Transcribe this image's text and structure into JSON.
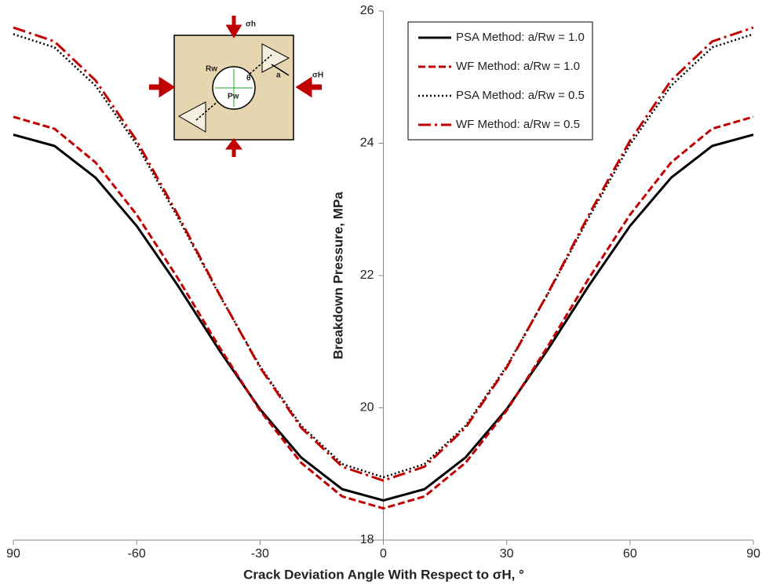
{
  "chart_data": {
    "type": "line",
    "x_label": "Crack Deviation Angle With Respect to σH, °",
    "y_label": "Breakdown Pressure, MPa",
    "x": [
      -90,
      -80,
      -70,
      -60,
      -50,
      -40,
      -30,
      -20,
      -10,
      0,
      10,
      20,
      30,
      40,
      50,
      60,
      70,
      80,
      90
    ],
    "series": [
      {
        "name": "PSA Method: a/Rw = 1.0",
        "color": "#000000",
        "style": "solid",
        "values": [
          24.13,
          23.96,
          23.48,
          22.75,
          21.85,
          20.88,
          19.98,
          19.25,
          18.77,
          18.6,
          18.77,
          19.25,
          19.98,
          20.88,
          21.85,
          22.75,
          23.48,
          23.96,
          24.13
        ]
      },
      {
        "name": "WF Method: a/Rw = 1.0",
        "color": "#c00000",
        "style": "dashed",
        "values": [
          24.4,
          24.22,
          23.71,
          22.92,
          21.96,
          20.93,
          19.96,
          19.17,
          18.66,
          18.48,
          18.66,
          19.17,
          19.96,
          20.93,
          21.96,
          22.92,
          23.71,
          24.22,
          24.4
        ]
      },
      {
        "name": "PSA Method: a/Rw = 0.5",
        "color": "#000000",
        "style": "dotted",
        "values": [
          25.65,
          25.45,
          24.87,
          23.98,
          22.88,
          21.72,
          20.63,
          19.73,
          19.15,
          18.95,
          19.15,
          19.73,
          20.63,
          21.72,
          22.88,
          23.98,
          24.87,
          25.45,
          25.65
        ]
      },
      {
        "name": "WF Method: a/Rw = 0.5",
        "color": "#c00000",
        "style": "dashdot",
        "values": [
          25.75,
          25.54,
          24.95,
          24.04,
          22.92,
          21.73,
          20.61,
          19.7,
          19.11,
          18.9,
          19.11,
          19.7,
          20.61,
          21.73,
          22.92,
          24.04,
          24.95,
          25.54,
          25.75
        ]
      }
    ],
    "xlim": [
      -90,
      90
    ],
    "xticks": [
      {
        "value": -90,
        "label": "90"
      },
      -60,
      -30,
      0,
      30,
      60,
      90
    ],
    "ylim": [
      18,
      26
    ],
    "yticks": [
      18,
      20,
      22,
      24,
      26
    ],
    "legend": "upper right",
    "inset": {
      "sigma_h": "σh",
      "sigma_H": "σH",
      "radius": "Rw",
      "pressure": "Pw",
      "angle": "θ",
      "crack": "a"
    }
  }
}
